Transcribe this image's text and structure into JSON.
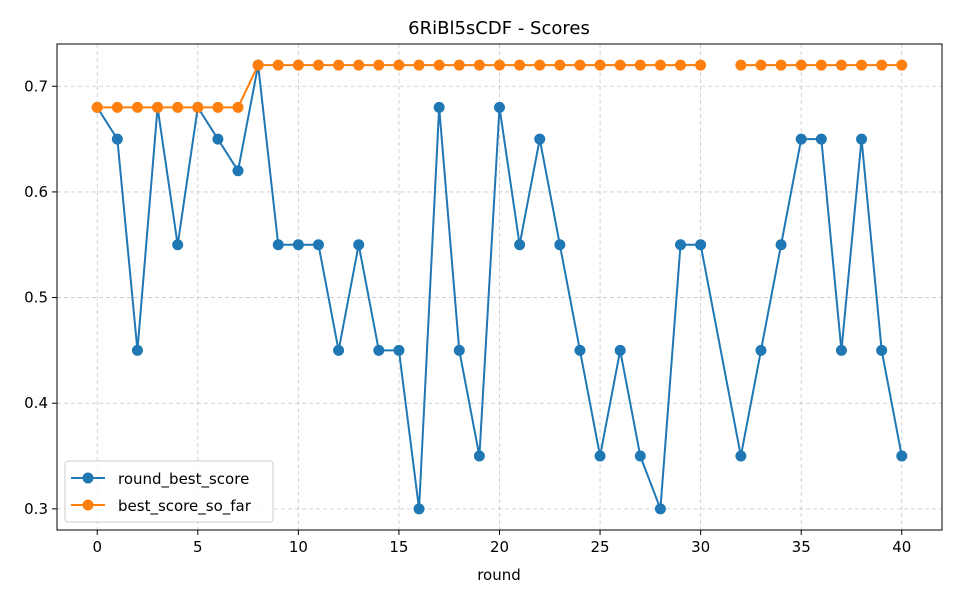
{
  "chart_data": {
    "type": "line",
    "title": "6RiBl5sCDF - Scores",
    "xlabel": "round",
    "ylabel": "",
    "xlim": [
      -2,
      42
    ],
    "ylim": [
      0.28,
      0.74
    ],
    "xticks": [
      0,
      5,
      10,
      15,
      20,
      25,
      30,
      35,
      40
    ],
    "yticks": [
      0.3,
      0.4,
      0.5,
      0.6,
      0.7
    ],
    "ytick_labels": [
      "0.3",
      "0.4",
      "0.5",
      "0.6",
      "0.7"
    ],
    "grid": true,
    "legend_position": "bottom-left",
    "series": [
      {
        "name": "round_best_score",
        "color": "#1f77b4",
        "x": [
          0,
          1,
          2,
          3,
          4,
          5,
          6,
          7,
          8,
          9,
          10,
          11,
          12,
          13,
          14,
          15,
          16,
          17,
          18,
          19,
          20,
          21,
          22,
          23,
          24,
          25,
          26,
          27,
          28,
          29,
          30,
          32,
          33,
          34,
          35,
          36,
          37,
          38,
          39,
          40
        ],
        "y": [
          0.68,
          0.65,
          0.45,
          0.68,
          0.55,
          0.68,
          0.65,
          0.62,
          0.72,
          0.55,
          0.55,
          0.55,
          0.45,
          0.55,
          0.45,
          0.45,
          0.3,
          0.68,
          0.45,
          0.35,
          0.68,
          0.55,
          0.65,
          0.55,
          0.45,
          0.35,
          0.45,
          0.35,
          0.3,
          0.55,
          0.55,
          0.35,
          0.45,
          0.55,
          0.65,
          0.65,
          0.45,
          0.65,
          0.45,
          0.35
        ]
      },
      {
        "name": "best_score_so_far",
        "color": "#ff7f0e",
        "x": [
          0,
          1,
          2,
          3,
          4,
          5,
          6,
          7,
          8,
          9,
          10,
          11,
          12,
          13,
          14,
          15,
          16,
          17,
          18,
          19,
          20,
          21,
          22,
          23,
          24,
          25,
          26,
          27,
          28,
          29,
          30,
          32,
          33,
          34,
          35,
          36,
          37,
          38,
          39,
          40
        ],
        "y": [
          0.68,
          0.68,
          0.68,
          0.68,
          0.68,
          0.68,
          0.68,
          0.68,
          0.72,
          0.72,
          0.72,
          0.72,
          0.72,
          0.72,
          0.72,
          0.72,
          0.72,
          0.72,
          0.72,
          0.72,
          0.72,
          0.72,
          0.72,
          0.72,
          0.72,
          0.72,
          0.72,
          0.72,
          0.72,
          0.72,
          0.72,
          0.72,
          0.72,
          0.72,
          0.72,
          0.72,
          0.72,
          0.72,
          0.72,
          0.72
        ]
      }
    ]
  }
}
